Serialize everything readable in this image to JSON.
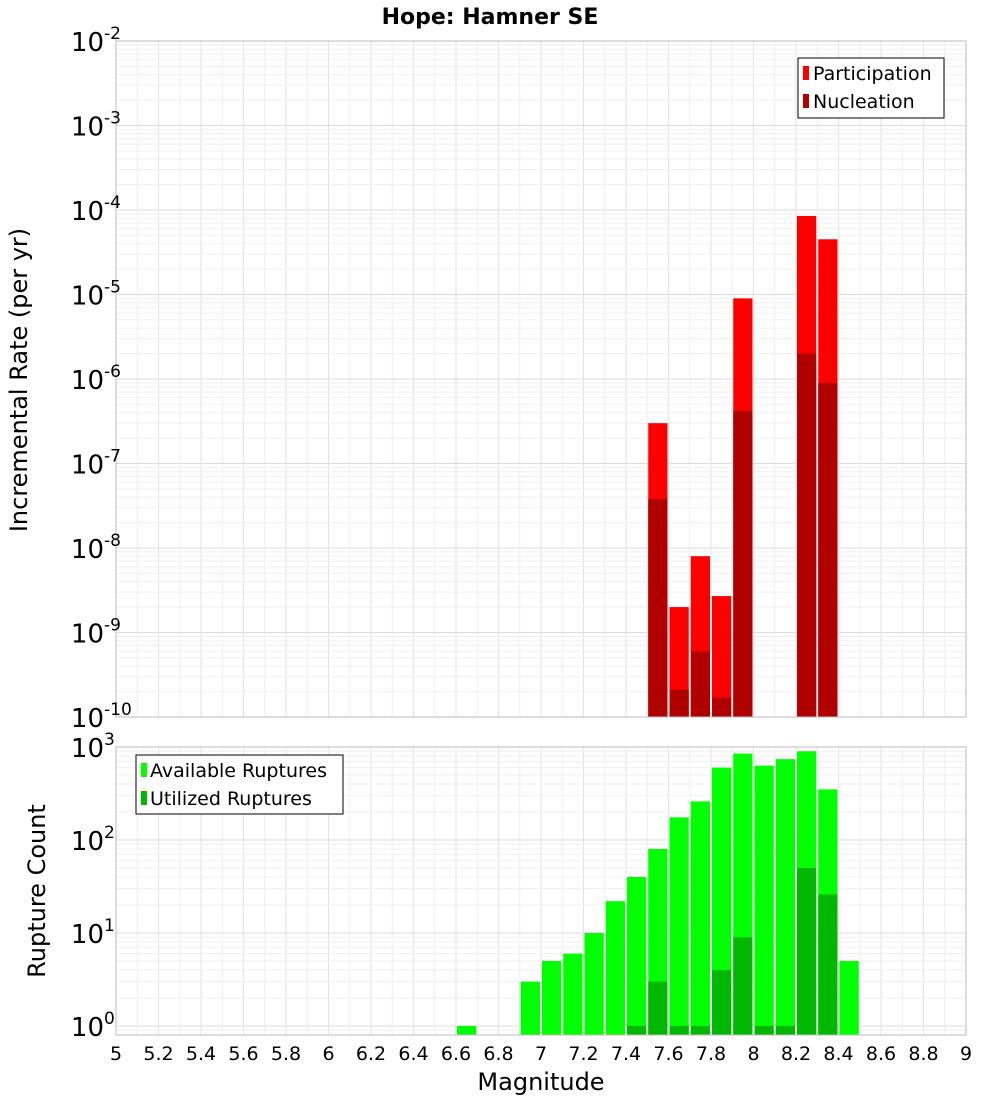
{
  "chart_data": {
    "title": "Hope: Hamner SE",
    "xlabel": "Magnitude",
    "xlim": [
      5,
      9
    ],
    "xticks": [
      "5",
      "5.2",
      "5.4",
      "5.6",
      "5.8",
      "6",
      "6.2",
      "6.4",
      "6.6",
      "6.8",
      "7",
      "7.2",
      "7.4",
      "7.6",
      "7.8",
      "8",
      "8.2",
      "8.4",
      "8.6",
      "8.8",
      "9"
    ],
    "bin_width": 0.1,
    "grid": true,
    "charts": [
      {
        "type": "bar",
        "ylabel": "Incremental Rate (per yr)",
        "yscale": "log",
        "ylim": [
          1e-10,
          0.01
        ],
        "yticks": [
          {
            "base": "10",
            "exp": "-2"
          },
          {
            "base": "10",
            "exp": "-3"
          },
          {
            "base": "10",
            "exp": "-4"
          },
          {
            "base": "10",
            "exp": "-5"
          },
          {
            "base": "10",
            "exp": "-6"
          },
          {
            "base": "10",
            "exp": "-7"
          },
          {
            "base": "10",
            "exp": "-8"
          },
          {
            "base": "10",
            "exp": "-9"
          },
          {
            "base": "10",
            "exp": "-10"
          }
        ],
        "legend_position": "top-right",
        "series": [
          {
            "name": "Participation",
            "color": "#ff0000",
            "x": [
              7.55,
              7.65,
              7.75,
              7.85,
              7.95,
              8.25,
              8.35
            ],
            "values": [
              3e-07,
              2e-09,
              8e-09,
              2.7e-09,
              9e-06,
              8.5e-05,
              4.5e-05
            ]
          },
          {
            "name": "Nucleation",
            "color": "#b00000",
            "x": [
              7.55,
              7.65,
              7.75,
              7.85,
              7.95,
              8.25,
              8.35
            ],
            "values": [
              3.8e-08,
              2.1e-10,
              6e-10,
              1.7e-10,
              4.2e-07,
              2e-06,
              9e-07
            ]
          }
        ]
      },
      {
        "type": "bar",
        "ylabel": "Rupture Count",
        "yscale": "log",
        "ylim": [
          0.8,
          1000
        ],
        "yticks": [
          {
            "base": "10",
            "exp": "3"
          },
          {
            "base": "10",
            "exp": "2"
          },
          {
            "base": "10",
            "exp": "1"
          },
          {
            "base": "10",
            "exp": "0"
          }
        ],
        "legend_position": "top-left",
        "series": [
          {
            "name": "Available Ruptures",
            "color": "#00ff00",
            "x": [
              6.65,
              6.95,
              7.05,
              7.15,
              7.25,
              7.35,
              7.45,
              7.55,
              7.65,
              7.75,
              7.85,
              7.95,
              8.05,
              8.15,
              8.25,
              8.35,
              8.45
            ],
            "values": [
              1,
              3,
              5,
              6,
              10,
              22,
              40,
              80,
              175,
              260,
              600,
              850,
              630,
              740,
              900,
              350,
              5
            ]
          },
          {
            "name": "Utilized Ruptures",
            "color": "#00b800",
            "x": [
              7.45,
              7.55,
              7.65,
              7.75,
              7.85,
              7.95,
              8.05,
              8.15,
              8.25,
              8.35
            ],
            "values": [
              1,
              3,
              1,
              1,
              4,
              9,
              1,
              1,
              50,
              26
            ]
          }
        ]
      }
    ]
  }
}
